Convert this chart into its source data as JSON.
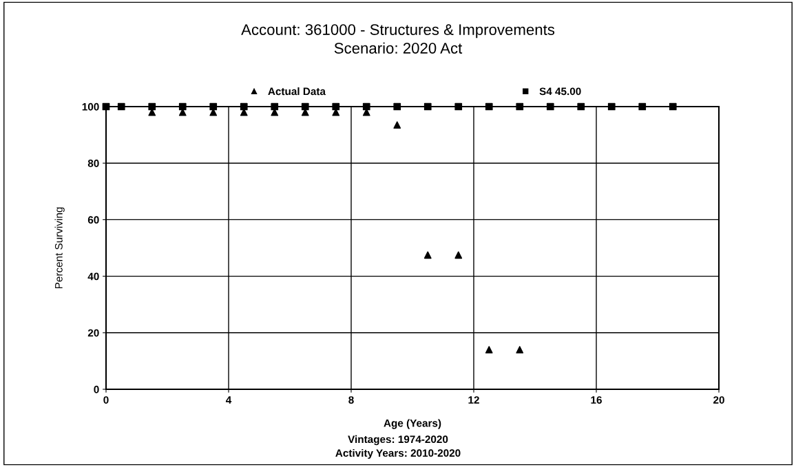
{
  "chart_data": {
    "type": "scatter",
    "title": "Account: 361000 - Structures & Improvements",
    "subtitle": "Scenario: 2020 Act",
    "xlabel": "Age (Years)",
    "ylabel": "Percent Surviving",
    "annotations": [
      "Vintages: 1974-2020",
      "Activity Years: 2010-2020"
    ],
    "series": [
      {
        "name": "Actual Data",
        "color": "#000000",
        "marker": "triangle",
        "x": [
          1.5,
          2.5,
          3.5,
          4.5,
          5.5,
          6.5,
          7.5,
          8.5,
          9.5,
          10.5,
          11.5,
          12.5,
          13.5
        ],
        "values": [
          98,
          98,
          98,
          98,
          98,
          98,
          98,
          98,
          93.5,
          47.5,
          47.5,
          14,
          14
        ]
      },
      {
        "name": "S4 45.00",
        "color": "#000000",
        "marker": "square",
        "x": [
          0,
          0.5,
          1.5,
          2.5,
          3.5,
          4.5,
          5.5,
          6.5,
          7.5,
          8.5,
          9.5,
          10.5,
          11.5,
          12.5,
          13.5,
          14.5,
          15.5,
          16.5,
          17.5,
          18.5
        ],
        "values": [
          100,
          100,
          100,
          100,
          100,
          100,
          100,
          100,
          100,
          100,
          100,
          100,
          100,
          100,
          100,
          100,
          100,
          100,
          100,
          100
        ]
      }
    ],
    "xlim": [
      0,
      20
    ],
    "xticks": [
      0,
      4,
      8,
      12,
      16,
      20
    ],
    "ylim": [
      0,
      100
    ],
    "yticks": [
      0,
      20,
      40,
      60,
      80,
      100
    ],
    "grid": true,
    "legend": "top"
  }
}
